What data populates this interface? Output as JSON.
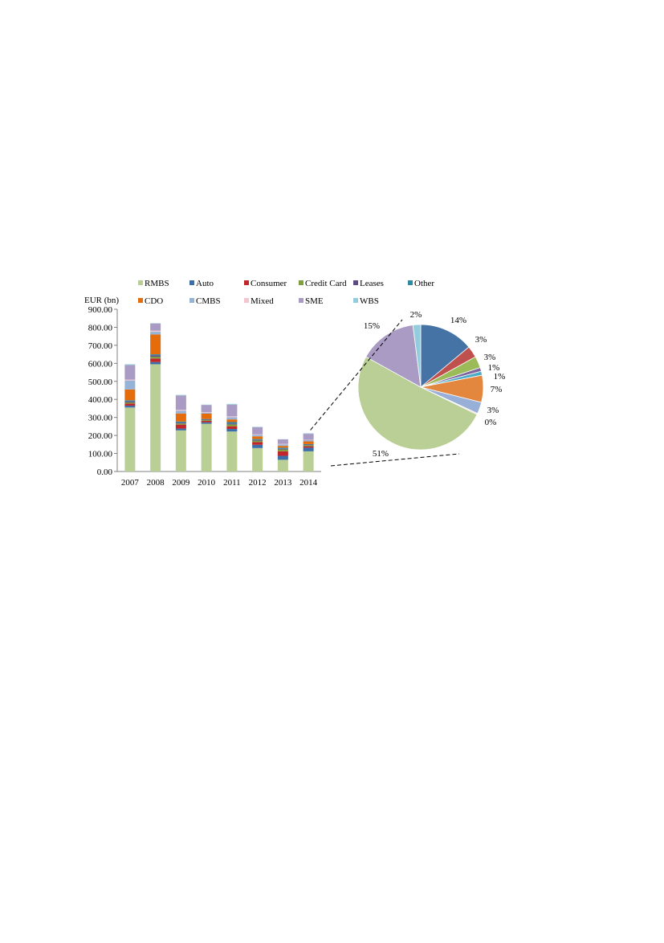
{
  "colors": {
    "RMBS": "#b9cf95",
    "Auto": "#3c6ea9",
    "Consumer": "#c0262a",
    "Credit Card": "#7f9f3c",
    "Leases": "#5e4a86",
    "Other": "#2f8aa3",
    "CDO": "#e46c0a",
    "CMBS": "#95b3d7",
    "Mixed": "#f3c6cf",
    "SME": "#a99bc3",
    "WBS": "#93cddd"
  },
  "pie_colors": {
    "Auto": "#4673a6",
    "Consumer": "#c0504d",
    "Credit Card": "#9bbb59",
    "Leases": "#7f64a1",
    "Other": "#4bacc6",
    "CDO": "#e3873f",
    "CMBS": "#98b0d8",
    "Mixed": "#f4c7c3",
    "RMBS": "#b9cf95",
    "SME": "#a99bc3",
    "WBS": "#93cddd"
  },
  "chart_data": [
    {
      "type": "bar",
      "stacked": true,
      "ylabel": "EUR (bn)",
      "ylim": [
        0,
        900
      ],
      "yticks": [
        "0.00",
        "100.00",
        "200.00",
        "300.00",
        "400.00",
        "500.00",
        "600.00",
        "700.00",
        "800.00",
        "900.00"
      ],
      "categories": [
        "2007",
        "2008",
        "2009",
        "2010",
        "2011",
        "2012",
        "2013",
        "2014"
      ],
      "legend_position": "top",
      "grid": false,
      "series": [
        {
          "name": "RMBS",
          "values": [
            355,
            595,
            228,
            265,
            222,
            130,
            65,
            112
          ]
        },
        {
          "name": "Auto",
          "values": [
            10,
            12,
            10,
            8,
            14,
            18,
            22,
            20
          ]
        },
        {
          "name": "Consumer",
          "values": [
            12,
            20,
            22,
            8,
            15,
            15,
            25,
            8
          ]
        },
        {
          "name": "Credit Card",
          "values": [
            6,
            10,
            6,
            4,
            10,
            8,
            10,
            6
          ]
        },
        {
          "name": "Leases",
          "values": [
            6,
            8,
            5,
            3,
            5,
            4,
            4,
            3
          ]
        },
        {
          "name": "Other",
          "values": [
            6,
            5,
            6,
            3,
            8,
            5,
            6,
            3
          ]
        },
        {
          "name": "CDO",
          "values": [
            60,
            110,
            45,
            30,
            15,
            15,
            10,
            15
          ]
        },
        {
          "name": "CMBS",
          "values": [
            50,
            15,
            15,
            5,
            12,
            8,
            8,
            7
          ]
        },
        {
          "name": "Mixed",
          "values": [
            5,
            6,
            5,
            3,
            5,
            3,
            3,
            2
          ]
        },
        {
          "name": "SME",
          "values": [
            80,
            40,
            80,
            40,
            65,
            40,
            25,
            33
          ]
        },
        {
          "name": "WBS",
          "values": [
            5,
            2,
            3,
            2,
            4,
            2,
            1,
            3
          ]
        }
      ]
    },
    {
      "type": "pie",
      "slices": [
        {
          "name": "Auto",
          "value": 14,
          "label": "14%"
        },
        {
          "name": "Consumer",
          "value": 3,
          "label": "3%"
        },
        {
          "name": "Credit Card",
          "value": 3,
          "label": "3%"
        },
        {
          "name": "Leases",
          "value": 1,
          "label": "1%"
        },
        {
          "name": "Other",
          "value": 1,
          "label": "1%"
        },
        {
          "name": "CDO",
          "value": 7,
          "label": "7%"
        },
        {
          "name": "CMBS",
          "value": 3,
          "label": "3%"
        },
        {
          "name": "Mixed",
          "value": 0.3,
          "label": "0%"
        },
        {
          "name": "RMBS",
          "value": 51,
          "label": "51%"
        },
        {
          "name": "SME",
          "value": 15,
          "label": "15%"
        },
        {
          "name": "WBS",
          "value": 2,
          "label": "2%"
        }
      ]
    }
  ]
}
